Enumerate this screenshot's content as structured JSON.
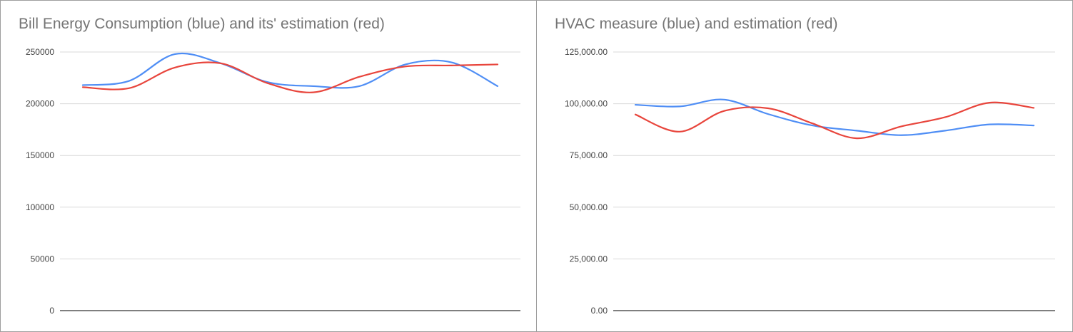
{
  "chart_data": [
    {
      "type": "line",
      "title": "Bill Energy Consumption (blue) and its' estimation (red)",
      "ylim": [
        0,
        250000
      ],
      "yticks": [
        0,
        50000,
        100000,
        150000,
        200000,
        250000
      ],
      "ytick_labels": [
        "0",
        "50000",
        "100000",
        "150000",
        "200000",
        "250000"
      ],
      "x": [
        1,
        2,
        3,
        4,
        5,
        6,
        7,
        8,
        9,
        10
      ],
      "series": [
        {
          "color": "#4f8ef5",
          "values": [
            218000,
            222000,
            248000,
            239000,
            221000,
            217000,
            217000,
            238000,
            240000,
            217000
          ]
        },
        {
          "color": "#e8453c",
          "values": [
            216000,
            215000,
            235000,
            239000,
            220000,
            211000,
            226000,
            236000,
            237000,
            238000
          ]
        }
      ],
      "grid": true,
      "legend": "none"
    },
    {
      "type": "line",
      "title": "HVAC measure (blue) and estimation (red)",
      "ylim": [
        0,
        125000
      ],
      "yticks": [
        0,
        25000,
        50000,
        75000,
        100000,
        125000
      ],
      "ytick_labels": [
        "0.00",
        "25,000.00",
        "50,000.00",
        "75,000.00",
        "100,000.00",
        "125,000.00"
      ],
      "x": [
        1,
        2,
        3,
        4,
        5,
        6,
        7,
        8,
        9,
        10
      ],
      "series": [
        {
          "color": "#4f8ef5",
          "values": [
            99500,
            98700,
            102000,
            95000,
            89500,
            87000,
            84800,
            87000,
            90000,
            89500
          ]
        },
        {
          "color": "#e8453c",
          "values": [
            94800,
            86500,
            96500,
            97800,
            90500,
            83300,
            89000,
            93500,
            100500,
            98000
          ]
        }
      ],
      "grid": true,
      "legend": "none"
    }
  ]
}
